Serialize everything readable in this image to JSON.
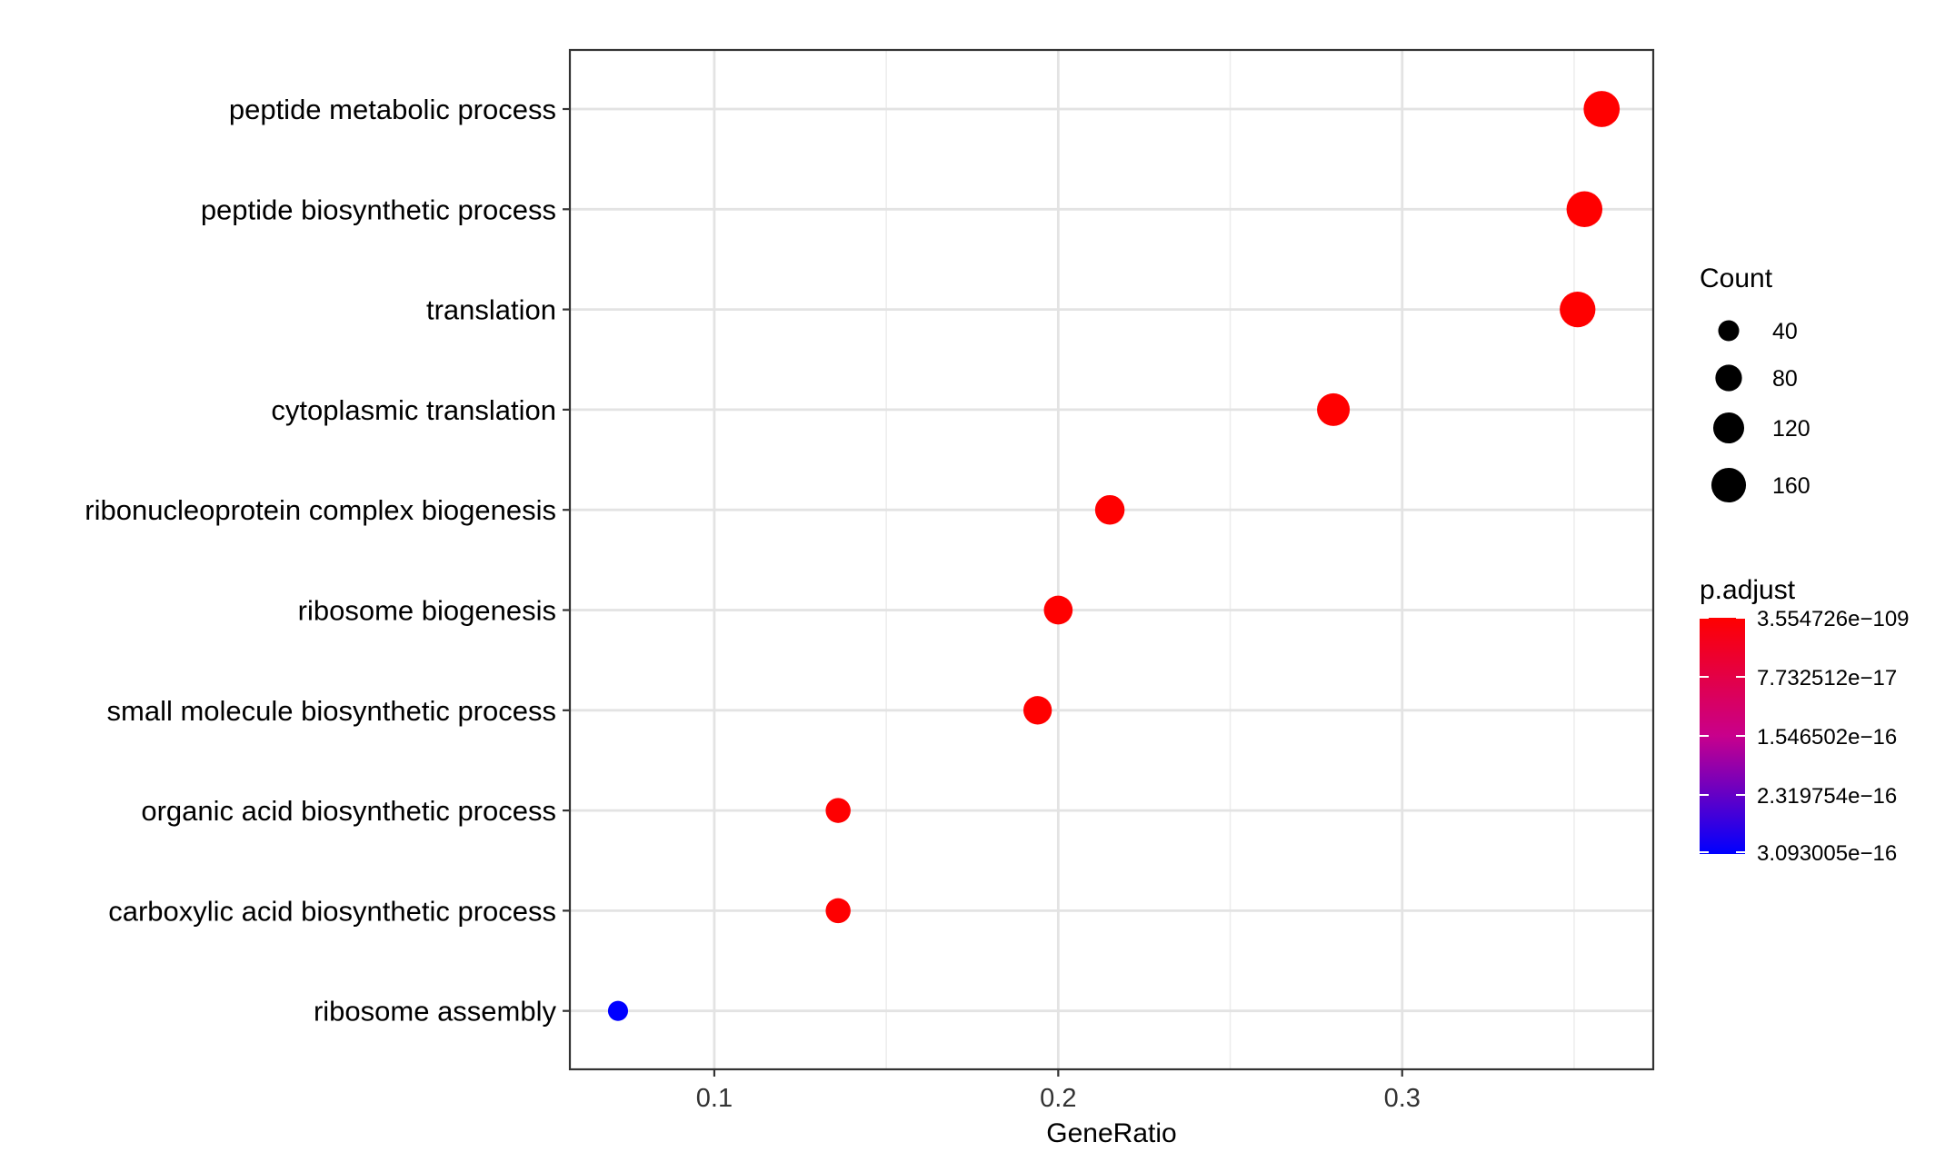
{
  "chart_data": {
    "type": "scatter",
    "xlabel": "GeneRatio",
    "ylabel": "",
    "xlim": [
      0.058,
      0.373
    ],
    "x_ticks": [
      0.1,
      0.2,
      0.3
    ],
    "x_tick_labels": [
      "0.1",
      "0.2",
      "0.3"
    ],
    "grid": true,
    "legend_position": "right",
    "categories": [
      "peptide metabolic process",
      "peptide biosynthetic process",
      "translation",
      "cytoplasmic translation",
      "ribonucleoprotein complex biogenesis",
      "ribosome biogenesis",
      "small molecule biosynthetic process",
      "organic acid biosynthetic process",
      "carboxylic acid biosynthetic process",
      "ribosome assembly"
    ],
    "points": [
      {
        "term": "peptide metabolic process",
        "gene_ratio": 0.358,
        "count": 178,
        "p_adjust": 3.554726e-109
      },
      {
        "term": "peptide biosynthetic process",
        "gene_ratio": 0.353,
        "count": 175,
        "p_adjust": 3.6e-109
      },
      {
        "term": "translation",
        "gene_ratio": 0.351,
        "count": 173,
        "p_adjust": 3.6e-109
      },
      {
        "term": "cytoplasmic translation",
        "gene_ratio": 0.28,
        "count": 139,
        "p_adjust": 1e-100
      },
      {
        "term": "ribonucleoprotein complex biogenesis",
        "gene_ratio": 0.215,
        "count": 106,
        "p_adjust": 1e-30
      },
      {
        "term": "ribosome biogenesis",
        "gene_ratio": 0.2,
        "count": 99,
        "p_adjust": 1e-30
      },
      {
        "term": "small molecule biosynthetic process",
        "gene_ratio": 0.194,
        "count": 96,
        "p_adjust": 1e-20
      },
      {
        "term": "organic acid biosynthetic process",
        "gene_ratio": 0.136,
        "count": 67,
        "p_adjust": 1e-18
      },
      {
        "term": "carboxylic acid biosynthetic process",
        "gene_ratio": 0.136,
        "count": 67,
        "p_adjust": 1e-18
      },
      {
        "term": "ribosome assembly",
        "gene_ratio": 0.072,
        "count": 35,
        "p_adjust": 3.093005e-16
      }
    ],
    "size_legend": {
      "title": "Count",
      "values": [
        40,
        80,
        120,
        160
      ],
      "labels": [
        "40",
        "80",
        "120",
        "160"
      ]
    },
    "color_legend": {
      "title": "p.adjust",
      "labels": [
        "3.554726e−109",
        "7.732512e−17",
        "1.546502e−16",
        "2.319754e−16",
        "3.093005e−16"
      ],
      "low_color": "#ff0000",
      "high_color": "#0000ff"
    }
  }
}
